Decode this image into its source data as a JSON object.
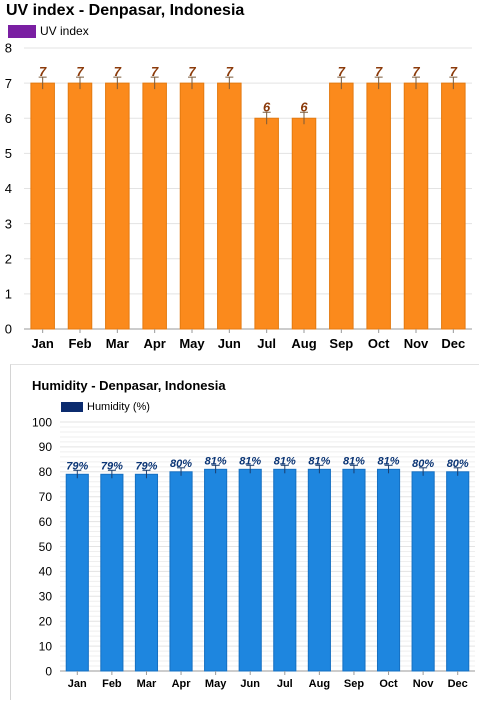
{
  "colors": {
    "uv_bar": "#fb8a1c",
    "uv_bar_edge": "#e47a10",
    "uv_legend": "#7a1fa2",
    "uv_label": "#8b3a0a",
    "hum_bar": "#1e86df",
    "hum_bar_edge": "#1670c2",
    "hum_legend": "#0b2b6e",
    "hum_label": "#0b3575",
    "grid": "#e3e3e3"
  },
  "chart_data": [
    {
      "type": "bar",
      "title": "UV index - Denpasar, Indonesia",
      "legend": "UV index",
      "categories": [
        "Jan",
        "Feb",
        "Mar",
        "Apr",
        "May",
        "Jun",
        "Jul",
        "Aug",
        "Sep",
        "Oct",
        "Nov",
        "Dec"
      ],
      "series": [
        {
          "name": "UV index",
          "values": [
            7,
            7,
            7,
            7,
            7,
            7,
            6,
            6,
            7,
            7,
            7,
            7
          ]
        }
      ],
      "data_labels": [
        "7",
        "7",
        "7",
        "7",
        "7",
        "7",
        "6",
        "6",
        "7",
        "7",
        "7",
        "7"
      ],
      "ylim": [
        0,
        8
      ],
      "yticks": [
        "0",
        "1",
        "2",
        "3",
        "4",
        "5",
        "6",
        "7",
        "8"
      ],
      "grid": true,
      "legend_position": "top-left"
    },
    {
      "type": "bar",
      "title": "Humidity - Denpasar, Indonesia",
      "legend": "Humidity (%)",
      "categories": [
        "Jan",
        "Feb",
        "Mar",
        "Apr",
        "May",
        "Jun",
        "Jul",
        "Aug",
        "Sep",
        "Oct",
        "Nov",
        "Dec"
      ],
      "series": [
        {
          "name": "Humidity (%)",
          "values": [
            79,
            79,
            79,
            80,
            81,
            81,
            81,
            81,
            81,
            81,
            80,
            80
          ]
        }
      ],
      "data_labels": [
        "79%",
        "79%",
        "79%",
        "80%",
        "81%",
        "81%",
        "81%",
        "81%",
        "81%",
        "81%",
        "80%",
        "80%"
      ],
      "ylim": [
        0,
        100
      ],
      "yticks": [
        "0",
        "10",
        "20",
        "30",
        "40",
        "50",
        "60",
        "70",
        "80",
        "90",
        "100"
      ],
      "grid": true,
      "legend_position": "top-left"
    }
  ]
}
